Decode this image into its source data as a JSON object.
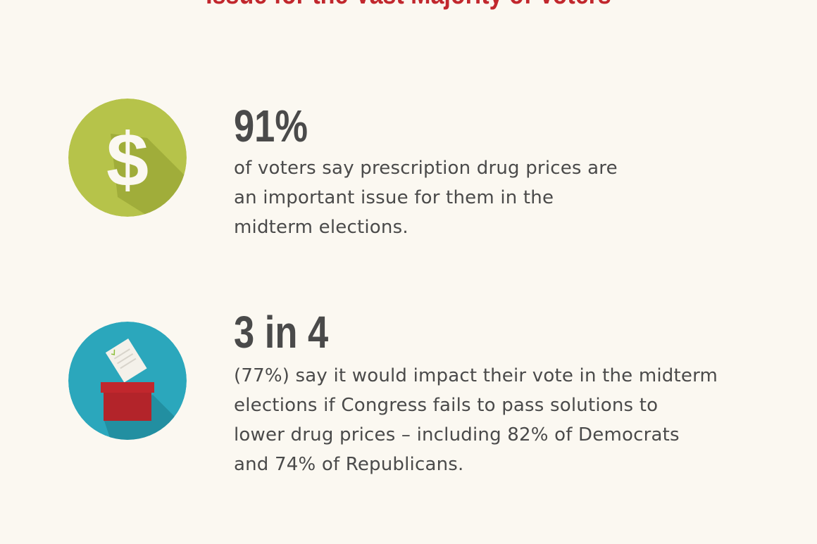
{
  "title": "Issue for the Vast Majority of Voters",
  "colors": {
    "background": "#fbf8f1",
    "title": "#c1272d",
    "text": "#4a4a4a",
    "dollar_circle": "#b6c34a",
    "ballot_circle": "#2ba7bc",
    "ballot_box": "#c1272d"
  },
  "stats": [
    {
      "icon": "dollar-sign-icon",
      "figure": "91%",
      "lines": [
        "of voters say prescription drug prices are",
        "an important issue for them in the",
        "midterm elections."
      ]
    },
    {
      "icon": "ballot-box-icon",
      "figure": "3 in 4",
      "lines": [
        "(77%) say it would impact their vote in the midterm",
        "elections if Congress fails to pass solutions to",
        "lower drug prices – including 82% of Democrats",
        "and 74% of Republicans."
      ]
    }
  ]
}
